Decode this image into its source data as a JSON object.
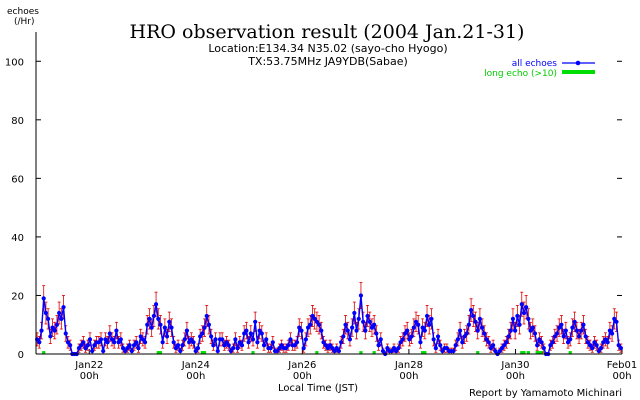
{
  "chart_data": {
    "type": "line",
    "title": "HRO observation result (2004 Jan.21-31)",
    "subtitle_lines": [
      "Location:E134.34 N35.02 (sayo-cho Hyogo)",
      "TX:53.75MHz JA9YDB(Sabae)"
    ],
    "ylabel_lines": [
      "echoes",
      "(/Hr)"
    ],
    "xlabel": "Local Time (JST)",
    "credit": "Report by Yamamoto Michinari",
    "ylim": [
      0,
      110
    ],
    "yticks": [
      0,
      20,
      40,
      60,
      80,
      100
    ],
    "x_range_hours": [
      0,
      264
    ],
    "x_tick_labels": [
      {
        "hour": 24,
        "date": "Jan22",
        "time": "00h"
      },
      {
        "hour": 72,
        "date": "Jan24",
        "time": "00h"
      },
      {
        "hour": 120,
        "date": "Jan26",
        "time": "00h"
      },
      {
        "hour": 168,
        "date": "Jan28",
        "time": "00h"
      },
      {
        "hour": 216,
        "date": "Jan30",
        "time": "00h"
      },
      {
        "hour": 264,
        "date": "Feb01",
        "time": "00h"
      }
    ],
    "legend_position": "top-right",
    "colors": {
      "all": "#0000ff",
      "long": "#00dd00",
      "error": "#dd0000",
      "axis": "#000000",
      "title_line": "#000000"
    },
    "series": [
      {
        "name": "all echoes",
        "hourly": [
          5,
          4,
          8,
          19,
          14,
          12,
          6,
          9,
          8,
          10,
          14,
          12,
          16,
          7,
          4,
          3,
          0,
          0,
          0,
          2,
          3,
          4,
          2,
          3,
          5,
          1,
          3,
          4,
          4,
          5,
          1,
          5,
          4,
          7,
          5,
          4,
          8,
          4,
          5,
          2,
          1,
          2,
          3,
          1,
          3,
          4,
          2,
          6,
          5,
          4,
          10,
          12,
          9,
          13,
          17,
          12,
          10,
          4,
          9,
          6,
          11,
          9,
          4,
          2,
          3,
          1,
          3,
          5,
          8,
          4,
          5,
          4,
          1,
          2,
          6,
          7,
          9,
          13,
          10,
          6,
          3,
          5,
          1,
          5,
          5,
          3,
          4,
          3,
          1,
          2,
          5,
          2,
          4,
          3,
          7,
          8,
          4,
          7,
          5,
          11,
          4,
          8,
          7,
          3,
          5,
          2,
          2,
          4,
          1,
          1,
          2,
          3,
          2,
          2,
          3,
          5,
          3,
          3,
          4,
          9,
          8,
          2,
          5,
          9,
          10,
          13,
          12,
          11,
          10,
          8,
          4,
          3,
          2,
          3,
          2,
          1,
          2,
          1,
          4,
          6,
          10,
          8,
          5,
          9,
          14,
          8,
          12,
          20,
          11,
          8,
          13,
          11,
          9,
          10,
          7,
          3,
          5,
          1,
          0,
          2,
          1,
          1,
          2,
          1,
          2,
          4,
          5,
          7,
          8,
          5,
          6,
          9,
          11,
          10,
          4,
          9,
          8,
          13,
          10,
          12,
          5,
          2,
          6,
          3,
          1,
          2,
          2,
          1,
          1,
          1,
          3,
          5,
          8,
          4,
          6,
          7,
          10,
          15,
          13,
          11,
          8,
          12,
          9,
          7,
          5,
          4,
          2,
          3,
          1,
          0,
          1,
          2,
          3,
          4,
          6,
          8,
          12,
          8,
          13,
          10,
          17,
          14,
          16,
          12,
          8,
          9,
          7,
          3,
          5,
          4,
          2,
          0,
          0,
          3,
          4,
          6,
          7,
          9,
          10,
          6,
          8,
          4,
          5,
          9,
          11,
          8,
          6,
          8,
          10,
          6,
          4,
          3,
          2,
          4,
          3,
          1,
          2,
          4,
          5,
          4,
          8,
          7,
          12,
          11,
          3,
          2
        ]
      },
      {
        "name": "long echo (>10)",
        "hourly": [
          0,
          0,
          0,
          1,
          0,
          0,
          0,
          0,
          0,
          0,
          0,
          0,
          0,
          0,
          0,
          0,
          0,
          0,
          0,
          0,
          0,
          0,
          0,
          0,
          0,
          0,
          0,
          0,
          0,
          0,
          0,
          0,
          0,
          0,
          0,
          0,
          0,
          0,
          0,
          0,
          0,
          0,
          0,
          0,
          0,
          0,
          0,
          0,
          0,
          0,
          0,
          0,
          0,
          0,
          0,
          1,
          1,
          0,
          0,
          0,
          0,
          0,
          0,
          0,
          0,
          0,
          0,
          0,
          0,
          0,
          0,
          0,
          0,
          0,
          0,
          1,
          1,
          0,
          0,
          0,
          0,
          0,
          0,
          0,
          0,
          0,
          0,
          0,
          0,
          0,
          0,
          0,
          0,
          0,
          0,
          0,
          0,
          0,
          1,
          0,
          0,
          0,
          0,
          0,
          0,
          0,
          0,
          0,
          0,
          0,
          0,
          0,
          0,
          0,
          0,
          0,
          0,
          0,
          0,
          0,
          0,
          0,
          0,
          0,
          0,
          0,
          0,
          1,
          0,
          0,
          0,
          0,
          0,
          0,
          0,
          0,
          0,
          0,
          0,
          0,
          0,
          0,
          0,
          0,
          0,
          0,
          0,
          1,
          0,
          0,
          0,
          0,
          0,
          1,
          0,
          0,
          0,
          0,
          0,
          0,
          0,
          0,
          0,
          0,
          0,
          0,
          0,
          0,
          0,
          0,
          0,
          0,
          0,
          0,
          0,
          1,
          1,
          0,
          0,
          0,
          0,
          0,
          0,
          0,
          0,
          0,
          0,
          0,
          0,
          0,
          0,
          0,
          0,
          0,
          0,
          0,
          0,
          0,
          0,
          0,
          1,
          0,
          0,
          0,
          0,
          0,
          0,
          0,
          0,
          0,
          0,
          0,
          0,
          0,
          0,
          0,
          0,
          0,
          0,
          0,
          1,
          1,
          0,
          1,
          0,
          0,
          0,
          1,
          1,
          1,
          0,
          0,
          0,
          0,
          0,
          0,
          0,
          0,
          0,
          0,
          0,
          0,
          1,
          0,
          0,
          0,
          0,
          0,
          0,
          0,
          0,
          0,
          0,
          0,
          0,
          0,
          0,
          0,
          0,
          0,
          0,
          0,
          0,
          0,
          0,
          0,
          0,
          0,
          0,
          0
        ]
      }
    ]
  }
}
